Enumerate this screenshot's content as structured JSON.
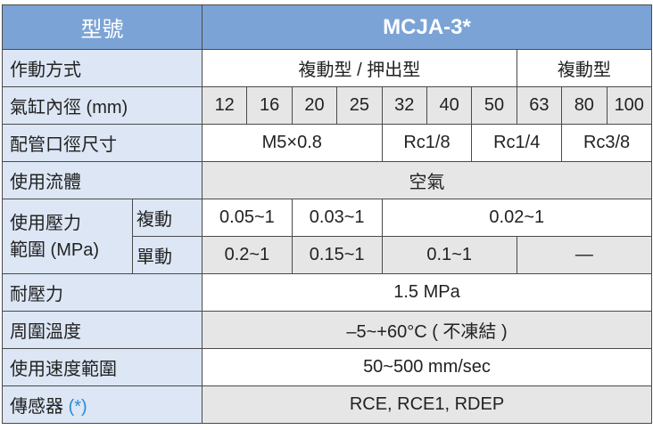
{
  "header": {
    "label": "型號",
    "model": "MCJA-3*"
  },
  "rows": {
    "action": {
      "label": "作動方式",
      "values": [
        "複動型 / 押出型",
        "複動型"
      ]
    },
    "bore": {
      "label": "氣缸內徑 (mm)",
      "values": [
        "12",
        "16",
        "20",
        "25",
        "32",
        "40",
        "50",
        "63",
        "80",
        "100"
      ]
    },
    "port": {
      "label": "配管口徑尺寸",
      "values": [
        "M5×0.8",
        "Rc1/8",
        "Rc1/4",
        "Rc3/8"
      ]
    },
    "fluid": {
      "label": "使用流體",
      "value": "空氣"
    },
    "pressure": {
      "label_line1": "使用壓力",
      "label_line2": "範圍 (MPa)",
      "double": {
        "label": "複動",
        "values": [
          "0.05~1",
          "0.03~1",
          "0.02~1"
        ]
      },
      "single": {
        "label": "單動",
        "values": [
          "0.2~1",
          "0.15~1",
          "0.1~1",
          "—"
        ]
      }
    },
    "proof": {
      "label": "耐壓力",
      "value": "1.5 MPa"
    },
    "temp": {
      "label": "周圍溫度",
      "value": "–5~+60°C ( 不凍結 )"
    },
    "speed": {
      "label": "使用速度範圍",
      "value": "50~500 mm/sec"
    },
    "sensor": {
      "label": "傳感器",
      "note": "(*)",
      "value": "RCE, RCE1, RDEP"
    }
  },
  "colors": {
    "header": "#7ba3d6",
    "label_bg": "#dce6f4",
    "alt_row": "#e6e6e6",
    "note": "#2a8ad6"
  }
}
